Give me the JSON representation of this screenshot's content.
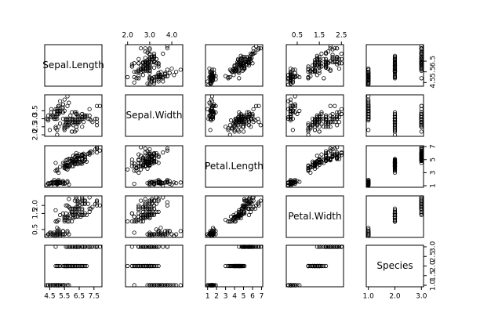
{
  "chart_data": {
    "type": "scatter_matrix",
    "point_color": "#000000",
    "variables": [
      {
        "name": "Sepal.Length",
        "lim": [
          4.156,
          8.044
        ],
        "xticks": [
          4.5,
          5.5,
          6.5,
          7.5
        ],
        "yticks": [
          4.5,
          5.5,
          6.5
        ],
        "values": [
          5.1,
          4.9,
          4.7,
          4.6,
          5.0,
          5.4,
          4.6,
          5.0,
          4.4,
          4.9,
          5.4,
          4.8,
          4.8,
          4.3,
          5.8,
          5.7,
          5.4,
          5.1,
          5.7,
          5.1,
          5.4,
          5.1,
          4.6,
          5.1,
          4.8,
          5.0,
          5.0,
          5.2,
          5.2,
          4.7,
          4.8,
          5.4,
          5.2,
          5.5,
          4.9,
          5.0,
          5.5,
          4.9,
          4.4,
          5.1,
          5.0,
          4.5,
          4.4,
          5.0,
          5.1,
          4.8,
          5.1,
          4.6,
          5.3,
          5.0,
          7.0,
          6.4,
          6.9,
          5.5,
          6.5,
          5.7,
          6.3,
          4.9,
          6.6,
          5.2,
          5.0,
          5.9,
          6.0,
          6.1,
          5.6,
          6.7,
          5.6,
          5.8,
          6.2,
          5.6,
          5.9,
          6.1,
          6.3,
          6.1,
          6.4,
          6.6,
          6.8,
          6.7,
          6.0,
          5.7,
          5.5,
          5.5,
          5.8,
          6.0,
          5.4,
          6.0,
          6.7,
          6.3,
          5.6,
          5.5,
          5.5,
          6.1,
          5.8,
          5.0,
          5.6,
          5.7,
          5.7,
          6.2,
          5.1,
          5.7,
          6.3,
          5.8,
          7.1,
          6.3,
          6.5,
          7.6,
          4.9,
          7.3,
          6.7,
          7.2,
          6.5,
          6.4,
          6.8,
          5.7,
          5.8,
          6.4,
          6.5,
          7.7,
          7.7,
          6.0,
          6.9,
          5.6,
          7.7,
          6.3,
          6.7,
          7.2,
          6.2,
          6.1,
          6.4,
          7.2,
          7.4,
          7.9,
          6.4,
          6.3,
          6.1,
          7.7,
          6.3,
          6.4,
          6.0,
          6.9,
          6.7,
          6.9,
          5.8,
          6.8,
          6.7,
          6.7,
          6.3,
          6.5,
          6.2,
          5.9
        ]
      },
      {
        "name": "Sepal.Width",
        "lim": [
          1.904,
          4.496
        ],
        "xticks": [
          {
            "value": 2,
            "label": "2.0"
          },
          {
            "value": 3,
            "label": "3.0"
          },
          {
            "value": 4,
            "label": "4.0"
          }
        ],
        "yticks": [
          {
            "value": 2,
            "label": "2.0"
          },
          2.5,
          {
            "value": 3,
            "label": "3.0"
          },
          3.5
        ],
        "values": [
          3.5,
          3.0,
          3.2,
          3.1,
          3.6,
          3.9,
          3.4,
          3.4,
          2.9,
          3.1,
          3.7,
          3.4,
          3.0,
          3.0,
          4.0,
          4.4,
          3.9,
          3.5,
          3.8,
          3.8,
          3.4,
          3.7,
          3.6,
          3.3,
          3.4,
          3.0,
          3.4,
          3.5,
          3.4,
          3.2,
          3.1,
          3.4,
          4.1,
          4.2,
          3.1,
          3.2,
          3.5,
          3.6,
          3.0,
          3.4,
          3.5,
          2.3,
          3.2,
          3.5,
          3.8,
          3.0,
          3.8,
          3.2,
          3.7,
          3.3,
          3.2,
          3.2,
          3.1,
          2.3,
          2.8,
          2.8,
          3.3,
          2.4,
          2.9,
          2.7,
          2.0,
          3.0,
          2.2,
          2.9,
          2.9,
          3.1,
          3.0,
          2.7,
          2.2,
          2.5,
          3.2,
          2.8,
          2.5,
          2.8,
          2.9,
          3.0,
          2.8,
          3.0,
          2.9,
          2.6,
          2.4,
          2.4,
          2.7,
          2.7,
          3.0,
          3.4,
          3.1,
          2.3,
          3.0,
          2.5,
          2.6,
          3.0,
          2.6,
          2.3,
          2.7,
          3.0,
          2.9,
          2.9,
          2.5,
          2.8,
          3.3,
          2.7,
          3.0,
          2.9,
          3.0,
          3.0,
          2.5,
          2.9,
          2.5,
          3.6,
          3.2,
          2.7,
          3.0,
          2.5,
          2.8,
          3.2,
          3.0,
          3.8,
          2.6,
          2.2,
          3.2,
          2.8,
          2.8,
          2.7,
          3.3,
          3.2,
          2.8,
          3.0,
          2.8,
          3.0,
          2.8,
          3.8,
          2.8,
          2.8,
          2.6,
          3.0,
          3.4,
          3.1,
          3.0,
          3.1,
          3.1,
          3.1,
          2.7,
          3.2,
          3.3,
          3.0,
          2.5,
          3.0,
          3.4,
          3.0
        ]
      },
      {
        "name": "Petal.Length",
        "lim": [
          0.764,
          7.136
        ],
        "xticks": [
          1,
          2,
          3,
          4,
          5,
          6,
          7
        ],
        "yticks": [
          1,
          3,
          5,
          7
        ],
        "values": [
          1.4,
          1.4,
          1.3,
          1.5,
          1.4,
          1.7,
          1.4,
          1.5,
          1.4,
          1.5,
          1.5,
          1.6,
          1.4,
          1.1,
          1.2,
          1.5,
          1.3,
          1.4,
          1.7,
          1.5,
          1.7,
          1.5,
          1.0,
          1.7,
          1.9,
          1.6,
          1.6,
          1.5,
          1.4,
          1.6,
          1.6,
          1.5,
          1.5,
          1.4,
          1.5,
          1.2,
          1.3,
          1.4,
          1.3,
          1.5,
          1.3,
          1.3,
          1.3,
          1.6,
          1.9,
          1.4,
          1.6,
          1.4,
          1.5,
          1.4,
          4.7,
          4.5,
          4.9,
          4.0,
          4.6,
          4.5,
          4.7,
          3.3,
          4.6,
          3.9,
          3.5,
          4.2,
          4.0,
          4.7,
          3.6,
          4.4,
          4.5,
          4.1,
          4.5,
          3.9,
          4.8,
          4.0,
          4.9,
          4.7,
          4.3,
          4.4,
          4.8,
          5.0,
          4.5,
          3.5,
          3.8,
          3.7,
          3.9,
          5.1,
          4.5,
          4.5,
          4.7,
          4.4,
          4.1,
          4.0,
          4.4,
          4.6,
          4.0,
          3.3,
          4.2,
          4.2,
          4.2,
          4.3,
          3.0,
          4.1,
          6.0,
          5.1,
          5.9,
          5.6,
          5.8,
          6.6,
          4.5,
          6.3,
          5.8,
          6.1,
          5.1,
          5.3,
          5.5,
          5.0,
          5.1,
          5.3,
          5.5,
          6.7,
          6.9,
          5.0,
          5.7,
          4.9,
          6.7,
          4.9,
          5.7,
          6.0,
          4.8,
          4.9,
          5.6,
          5.8,
          6.1,
          6.4,
          5.6,
          5.1,
          5.6,
          6.1,
          5.6,
          5.5,
          4.8,
          5.4,
          5.6,
          5.1,
          5.1,
          5.9,
          5.7,
          5.2,
          5.0,
          5.2,
          5.4,
          5.1
        ]
      },
      {
        "name": "Petal.Width",
        "lim": [
          0.004,
          2.596
        ],
        "xticks": [
          0.5,
          1.5,
          2.5
        ],
        "yticks": [
          0.5,
          1.5,
          {
            "value": 2,
            "label": "2.0"
          }
        ],
        "values": [
          0.2,
          0.2,
          0.2,
          0.2,
          0.2,
          0.4,
          0.3,
          0.2,
          0.2,
          0.1,
          0.2,
          0.2,
          0.1,
          0.1,
          0.2,
          0.4,
          0.4,
          0.3,
          0.3,
          0.3,
          0.2,
          0.4,
          0.2,
          0.5,
          0.2,
          0.2,
          0.4,
          0.2,
          0.2,
          0.2,
          0.2,
          0.4,
          0.1,
          0.2,
          0.2,
          0.2,
          0.2,
          0.1,
          0.2,
          0.2,
          0.3,
          0.3,
          0.2,
          0.6,
          0.4,
          0.3,
          0.2,
          0.2,
          0.2,
          0.2,
          1.4,
          1.5,
          1.5,
          1.3,
          1.5,
          1.3,
          1.6,
          1.0,
          1.3,
          1.4,
          1.0,
          1.5,
          1.0,
          1.4,
          1.3,
          1.4,
          1.5,
          1.0,
          1.5,
          1.1,
          1.8,
          1.3,
          1.5,
          1.2,
          1.3,
          1.4,
          1.4,
          1.7,
          1.5,
          1.0,
          1.1,
          1.0,
          1.2,
          1.6,
          1.5,
          1.6,
          1.5,
          1.3,
          1.3,
          1.3,
          1.2,
          1.4,
          1.2,
          1.0,
          1.3,
          1.2,
          1.3,
          1.3,
          1.1,
          1.3,
          2.5,
          1.9,
          2.1,
          1.8,
          2.2,
          2.1,
          1.7,
          1.8,
          1.8,
          2.5,
          2.0,
          1.9,
          2.1,
          2.0,
          2.4,
          2.3,
          1.8,
          2.2,
          2.3,
          1.5,
          2.3,
          2.0,
          2.0,
          1.8,
          2.1,
          1.8,
          1.8,
          1.8,
          2.1,
          1.6,
          1.9,
          2.0,
          2.2,
          1.5,
          1.4,
          2.3,
          2.4,
          1.8,
          1.8,
          2.1,
          2.4,
          2.3,
          1.9,
          2.3,
          2.5,
          2.3,
          1.9,
          2.0,
          2.3,
          1.8
        ]
      },
      {
        "name": "Species",
        "lim": [
          0.92,
          3.08
        ],
        "xticks": [
          {
            "value": 1,
            "label": "1.0"
          },
          {
            "value": 2,
            "label": "2.0"
          },
          {
            "value": 3,
            "label": "3.0"
          }
        ],
        "yticks": [
          {
            "value": 1,
            "label": "1.0"
          },
          1.5,
          {
            "value": 2,
            "label": "2.0"
          },
          2.5,
          {
            "value": 3,
            "label": "3.0"
          }
        ],
        "values": [
          1,
          1,
          1,
          1,
          1,
          1,
          1,
          1,
          1,
          1,
          1,
          1,
          1,
          1,
          1,
          1,
          1,
          1,
          1,
          1,
          1,
          1,
          1,
          1,
          1,
          1,
          1,
          1,
          1,
          1,
          1,
          1,
          1,
          1,
          1,
          1,
          1,
          1,
          1,
          1,
          1,
          1,
          1,
          1,
          1,
          1,
          1,
          1,
          1,
          1,
          2,
          2,
          2,
          2,
          2,
          2,
          2,
          2,
          2,
          2,
          2,
          2,
          2,
          2,
          2,
          2,
          2,
          2,
          2,
          2,
          2,
          2,
          2,
          2,
          2,
          2,
          2,
          2,
          2,
          2,
          2,
          2,
          2,
          2,
          2,
          2,
          2,
          2,
          2,
          2,
          2,
          2,
          2,
          2,
          2,
          2,
          2,
          2,
          2,
          2,
          3,
          3,
          3,
          3,
          3,
          3,
          3,
          3,
          3,
          3,
          3,
          3,
          3,
          3,
          3,
          3,
          3,
          3,
          3,
          3,
          3,
          3,
          3,
          3,
          3,
          3,
          3,
          3,
          3,
          3,
          3,
          3,
          3,
          3,
          3,
          3,
          3,
          3,
          3,
          3,
          3,
          3,
          3,
          3,
          3,
          3,
          3,
          3,
          3,
          3
        ]
      }
    ]
  }
}
